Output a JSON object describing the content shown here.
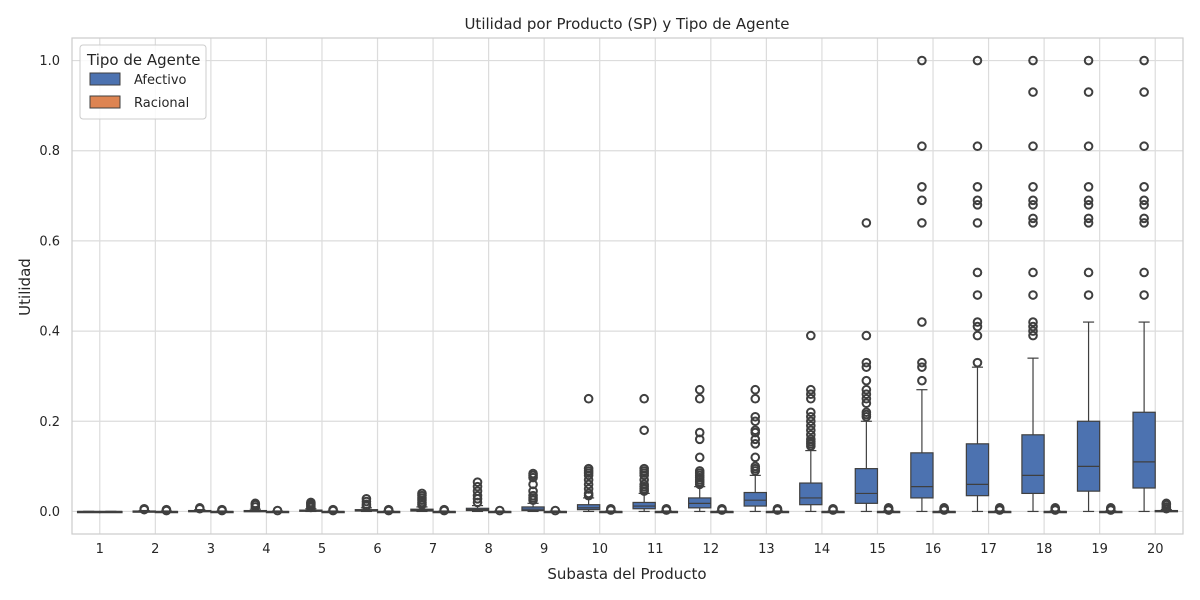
{
  "chart_data": {
    "type": "box",
    "title": "Utilidad por Producto (SP) y Tipo de Agente",
    "xlabel": "Subasta del Producto",
    "ylabel": "Utilidad",
    "categories": [
      "1",
      "2",
      "3",
      "4",
      "5",
      "6",
      "7",
      "8",
      "9",
      "10",
      "11",
      "12",
      "13",
      "14",
      "15",
      "16",
      "17",
      "18",
      "19",
      "20"
    ],
    "yticks": [
      "0.0",
      "0.2",
      "0.4",
      "0.6",
      "0.8",
      "1.0"
    ],
    "ylim": [
      -0.05,
      1.05
    ],
    "grid": true,
    "legend": {
      "title": "Tipo de Agente",
      "position": "top-left"
    },
    "series": [
      {
        "name": "Afectivo",
        "color": "#4c72b0",
        "boxes": [
          {
            "q1": 0.0,
            "med": 0.0,
            "q3": 0.0,
            "wlo": 0.0,
            "whi": 0.0,
            "outliers": []
          },
          {
            "q1": 0.0,
            "med": 0.0,
            "q3": 0.001,
            "wlo": 0.0,
            "whi": 0.002,
            "outliers": [
              0.004,
              0.006
            ]
          },
          {
            "q1": 0.0,
            "med": 0.001,
            "q3": 0.002,
            "wlo": 0.0,
            "whi": 0.004,
            "outliers": [
              0.006,
              0.008
            ]
          },
          {
            "q1": 0.0,
            "med": 0.001,
            "q3": 0.002,
            "wlo": 0.0,
            "whi": 0.005,
            "outliers": [
              0.01,
              0.015,
              0.018
            ]
          },
          {
            "q1": 0.001,
            "med": 0.002,
            "q3": 0.003,
            "wlo": 0.0,
            "whi": 0.006,
            "outliers": [
              0.009,
              0.012,
              0.015,
              0.018,
              0.02
            ]
          },
          {
            "q1": 0.001,
            "med": 0.002,
            "q3": 0.004,
            "wlo": 0.0,
            "whi": 0.008,
            "outliers": [
              0.012,
              0.016,
              0.022,
              0.028
            ]
          },
          {
            "q1": 0.001,
            "med": 0.003,
            "q3": 0.005,
            "wlo": 0.0,
            "whi": 0.01,
            "outliers": [
              0.015,
              0.02,
              0.025,
              0.03,
              0.035,
              0.04
            ]
          },
          {
            "q1": 0.002,
            "med": 0.004,
            "q3": 0.007,
            "wlo": 0.0,
            "whi": 0.013,
            "outliers": [
              0.02,
              0.028,
              0.035,
              0.045,
              0.055,
              0.065
            ]
          },
          {
            "q1": 0.002,
            "med": 0.005,
            "q3": 0.01,
            "wlo": 0.0,
            "whi": 0.018,
            "outliers": [
              0.025,
              0.03,
              0.035,
              0.045,
              0.06,
              0.075,
              0.08,
              0.084
            ]
          },
          {
            "q1": 0.004,
            "med": 0.008,
            "q3": 0.015,
            "wlo": 0.0,
            "whi": 0.03,
            "outliers": [
              0.035,
              0.04,
              0.05,
              0.06,
              0.07,
              0.08,
              0.085,
              0.09,
              0.095,
              0.25
            ]
          },
          {
            "q1": 0.006,
            "med": 0.012,
            "q3": 0.02,
            "wlo": 0.0,
            "whi": 0.04,
            "outliers": [
              0.045,
              0.05,
              0.055,
              0.06,
              0.07,
              0.08,
              0.085,
              0.09,
              0.095,
              0.18,
              0.25
            ]
          },
          {
            "q1": 0.008,
            "med": 0.018,
            "q3": 0.03,
            "wlo": 0.0,
            "whi": 0.055,
            "outliers": [
              0.06,
              0.065,
              0.07,
              0.075,
              0.08,
              0.085,
              0.09,
              0.12,
              0.16,
              0.175,
              0.25,
              0.27
            ]
          },
          {
            "q1": 0.012,
            "med": 0.025,
            "q3": 0.042,
            "wlo": 0.0,
            "whi": 0.08,
            "outliers": [
              0.09,
              0.095,
              0.1,
              0.12,
              0.15,
              0.16,
              0.175,
              0.18,
              0.2,
              0.21,
              0.25,
              0.27
            ]
          },
          {
            "q1": 0.015,
            "med": 0.03,
            "q3": 0.063,
            "wlo": 0.0,
            "whi": 0.135,
            "outliers": [
              0.145,
              0.15,
              0.155,
              0.16,
              0.17,
              0.18,
              0.19,
              0.2,
              0.21,
              0.22,
              0.25,
              0.26,
              0.27,
              0.39
            ]
          },
          {
            "q1": 0.018,
            "med": 0.04,
            "q3": 0.095,
            "wlo": 0.0,
            "whi": 0.2,
            "outliers": [
              0.21,
              0.215,
              0.22,
              0.24,
              0.25,
              0.26,
              0.27,
              0.29,
              0.32,
              0.33,
              0.39,
              0.64
            ]
          },
          {
            "q1": 0.03,
            "med": 0.055,
            "q3": 0.13,
            "wlo": 0.0,
            "whi": 0.27,
            "outliers": [
              0.29,
              0.32,
              0.33,
              0.42,
              0.64,
              0.69,
              0.72,
              0.81,
              1.0
            ]
          },
          {
            "q1": 0.035,
            "med": 0.06,
            "q3": 0.15,
            "wlo": 0.0,
            "whi": 0.32,
            "outliers": [
              0.33,
              0.39,
              0.41,
              0.42,
              0.48,
              0.53,
              0.64,
              0.68,
              0.69,
              0.72,
              0.81,
              1.0
            ]
          },
          {
            "q1": 0.04,
            "med": 0.08,
            "q3": 0.17,
            "wlo": 0.0,
            "whi": 0.34,
            "outliers": [
              0.39,
              0.4,
              0.41,
              0.42,
              0.48,
              0.53,
              0.64,
              0.65,
              0.68,
              0.69,
              0.72,
              0.81,
              0.93,
              1.0
            ]
          },
          {
            "q1": 0.045,
            "med": 0.1,
            "q3": 0.2,
            "wlo": 0.0,
            "whi": 0.42,
            "outliers": [
              0.48,
              0.53,
              0.64,
              0.65,
              0.68,
              0.69,
              0.72,
              0.81,
              0.93,
              1.0
            ]
          },
          {
            "q1": 0.052,
            "med": 0.11,
            "q3": 0.22,
            "wlo": 0.0,
            "whi": 0.42,
            "outliers": [
              0.48,
              0.53,
              0.64,
              0.65,
              0.68,
              0.69,
              0.72,
              0.81,
              0.93,
              1.0
            ]
          }
        ]
      },
      {
        "name": "Racional",
        "color": "#dd8452",
        "boxes": [
          {
            "q1": 0.0,
            "med": 0.0,
            "q3": 0.0,
            "wlo": 0.0,
            "whi": 0.0,
            "outliers": []
          },
          {
            "q1": 0.0,
            "med": 0.0,
            "q3": 0.0,
            "wlo": 0.0,
            "whi": 0.001,
            "outliers": [
              0.002,
              0.004
            ]
          },
          {
            "q1": 0.0,
            "med": 0.0,
            "q3": 0.0,
            "wlo": 0.0,
            "whi": 0.001,
            "outliers": [
              0.002,
              0.004
            ]
          },
          {
            "q1": 0.0,
            "med": 0.0,
            "q3": 0.0,
            "wlo": 0.0,
            "whi": 0.001,
            "outliers": [
              0.002
            ]
          },
          {
            "q1": 0.0,
            "med": 0.0,
            "q3": 0.0,
            "wlo": 0.0,
            "whi": 0.001,
            "outliers": [
              0.002,
              0.004
            ]
          },
          {
            "q1": 0.0,
            "med": 0.0,
            "q3": 0.0,
            "wlo": 0.0,
            "whi": 0.001,
            "outliers": [
              0.002,
              0.004
            ]
          },
          {
            "q1": 0.0,
            "med": 0.0,
            "q3": 0.0,
            "wlo": 0.0,
            "whi": 0.001,
            "outliers": [
              0.002,
              0.004
            ]
          },
          {
            "q1": 0.0,
            "med": 0.0,
            "q3": 0.0,
            "wlo": 0.0,
            "whi": 0.001,
            "outliers": [
              0.002
            ]
          },
          {
            "q1": 0.0,
            "med": 0.0,
            "q3": 0.0,
            "wlo": 0.0,
            "whi": 0.001,
            "outliers": [
              0.002
            ]
          },
          {
            "q1": 0.0,
            "med": 0.0,
            "q3": 0.0,
            "wlo": 0.0,
            "whi": 0.001,
            "outliers": [
              0.003,
              0.006
            ]
          },
          {
            "q1": 0.0,
            "med": 0.0,
            "q3": 0.0,
            "wlo": 0.0,
            "whi": 0.001,
            "outliers": [
              0.003,
              0.006
            ]
          },
          {
            "q1": 0.0,
            "med": 0.0,
            "q3": 0.0,
            "wlo": 0.0,
            "whi": 0.001,
            "outliers": [
              0.003,
              0.006
            ]
          },
          {
            "q1": 0.0,
            "med": 0.0,
            "q3": 0.0,
            "wlo": 0.0,
            "whi": 0.001,
            "outliers": [
              0.003,
              0.006
            ]
          },
          {
            "q1": 0.0,
            "med": 0.0,
            "q3": 0.0,
            "wlo": 0.0,
            "whi": 0.001,
            "outliers": [
              0.003,
              0.006
            ]
          },
          {
            "q1": 0.0,
            "med": 0.0,
            "q3": 0.0,
            "wlo": 0.0,
            "whi": 0.001,
            "outliers": [
              0.003,
              0.006,
              0.008
            ]
          },
          {
            "q1": 0.0,
            "med": 0.0,
            "q3": 0.0,
            "wlo": 0.0,
            "whi": 0.001,
            "outliers": [
              0.003,
              0.006,
              0.008
            ]
          },
          {
            "q1": 0.0,
            "med": 0.0,
            "q3": 0.0,
            "wlo": 0.0,
            "whi": 0.001,
            "outliers": [
              0.003,
              0.006,
              0.008
            ]
          },
          {
            "q1": 0.0,
            "med": 0.0,
            "q3": 0.0,
            "wlo": 0.0,
            "whi": 0.001,
            "outliers": [
              0.003,
              0.006,
              0.008
            ]
          },
          {
            "q1": 0.0,
            "med": 0.0,
            "q3": 0.0,
            "wlo": 0.0,
            "whi": 0.001,
            "outliers": [
              0.003,
              0.006,
              0.008
            ]
          },
          {
            "q1": 0.0,
            "med": 0.001,
            "q3": 0.002,
            "wlo": 0.0,
            "whi": 0.004,
            "outliers": [
              0.006,
              0.01,
              0.015,
              0.018
            ]
          }
        ]
      }
    ]
  }
}
